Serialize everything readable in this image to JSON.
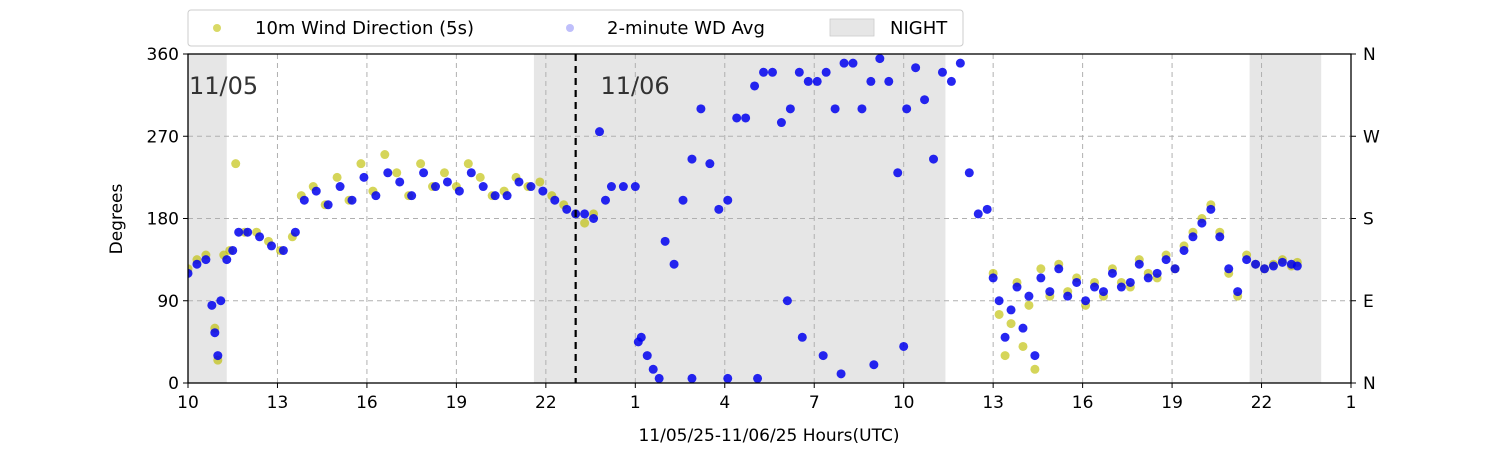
{
  "chart_data": {
    "type": "scatter",
    "xlabel": "11/05/25-11/06/25  Hours(UTC)",
    "ylabel": "Degrees",
    "x_range_hours": [
      10,
      49
    ],
    "ylim": [
      0,
      360
    ],
    "x_ticks": [
      {
        "hour": 10,
        "label": "10"
      },
      {
        "hour": 13,
        "label": "13"
      },
      {
        "hour": 16,
        "label": "16"
      },
      {
        "hour": 19,
        "label": "19"
      },
      {
        "hour": 22,
        "label": "22"
      },
      {
        "hour": 25,
        "label": "1"
      },
      {
        "hour": 28,
        "label": "4"
      },
      {
        "hour": 31,
        "label": "7"
      },
      {
        "hour": 34,
        "label": "10"
      },
      {
        "hour": 37,
        "label": "13"
      },
      {
        "hour": 40,
        "label": "16"
      },
      {
        "hour": 43,
        "label": "19"
      },
      {
        "hour": 46,
        "label": "22"
      },
      {
        "hour": 49,
        "label": "1"
      }
    ],
    "y_ticks": [
      0,
      90,
      180,
      270,
      360
    ],
    "y_ticks_right": [
      {
        "value": 0,
        "label": "N"
      },
      {
        "value": 90,
        "label": "E"
      },
      {
        "value": 180,
        "label": "S"
      },
      {
        "value": 270,
        "label": "W"
      },
      {
        "value": 360,
        "label": "N"
      }
    ],
    "grid": true,
    "legend_position": "top",
    "night_periods": [
      [
        10,
        11.3
      ],
      [
        21.6,
        35.4
      ],
      [
        45.6,
        48.0
      ]
    ],
    "date_separator_hour": 23.0,
    "date_annotations": [
      {
        "hour": 10.0,
        "label": "11/05"
      },
      {
        "hour": 23.8,
        "label": "11/06"
      }
    ],
    "series": [
      {
        "name": "10m Wind Direction (5s)",
        "color": "#bfbf00",
        "points": [
          [
            10.0,
            125
          ],
          [
            10.3,
            135
          ],
          [
            10.6,
            140
          ],
          [
            10.9,
            60
          ],
          [
            11.0,
            25
          ],
          [
            11.2,
            140
          ],
          [
            11.4,
            145
          ],
          [
            11.6,
            240
          ],
          [
            11.9,
            165
          ],
          [
            12.3,
            165
          ],
          [
            12.7,
            155
          ],
          [
            13.1,
            145
          ],
          [
            13.5,
            160
          ],
          [
            13.8,
            205
          ],
          [
            14.2,
            215
          ],
          [
            14.6,
            195
          ],
          [
            15.0,
            225
          ],
          [
            15.4,
            200
          ],
          [
            15.8,
            240
          ],
          [
            16.2,
            210
          ],
          [
            16.6,
            250
          ],
          [
            17.0,
            230
          ],
          [
            17.4,
            205
          ],
          [
            17.8,
            240
          ],
          [
            18.2,
            215
          ],
          [
            18.6,
            230
          ],
          [
            19.0,
            215
          ],
          [
            19.4,
            240
          ],
          [
            19.8,
            225
          ],
          [
            20.2,
            205
          ],
          [
            20.6,
            210
          ],
          [
            21.0,
            225
          ],
          [
            21.4,
            215
          ],
          [
            21.8,
            220
          ],
          [
            22.2,
            205
          ],
          [
            22.6,
            195
          ],
          [
            23.0,
            185
          ],
          [
            23.3,
            175
          ],
          [
            23.6,
            185
          ],
          [
            37.0,
            120
          ],
          [
            37.2,
            75
          ],
          [
            37.4,
            30
          ],
          [
            37.6,
            65
          ],
          [
            37.8,
            110
          ],
          [
            38.0,
            40
          ],
          [
            38.2,
            85
          ],
          [
            38.4,
            15
          ],
          [
            38.6,
            125
          ],
          [
            38.9,
            95
          ],
          [
            39.2,
            130
          ],
          [
            39.5,
            100
          ],
          [
            39.8,
            115
          ],
          [
            40.1,
            85
          ],
          [
            40.4,
            110
          ],
          [
            40.7,
            95
          ],
          [
            41.0,
            125
          ],
          [
            41.3,
            110
          ],
          [
            41.6,
            105
          ],
          [
            41.9,
            135
          ],
          [
            42.2,
            120
          ],
          [
            42.5,
            115
          ],
          [
            42.8,
            140
          ],
          [
            43.1,
            125
          ],
          [
            43.4,
            150
          ],
          [
            43.7,
            165
          ],
          [
            44.0,
            180
          ],
          [
            44.3,
            195
          ],
          [
            44.6,
            165
          ],
          [
            44.9,
            120
          ],
          [
            45.2,
            95
          ],
          [
            45.5,
            140
          ],
          [
            45.8,
            130
          ],
          [
            46.1,
            125
          ],
          [
            46.4,
            130
          ],
          [
            46.7,
            135
          ],
          [
            47.0,
            128
          ],
          [
            47.2,
            132
          ]
        ]
      },
      {
        "name": "2-minute WD Avg",
        "color": "#0000ee",
        "points": [
          [
            10.0,
            120
          ],
          [
            10.3,
            130
          ],
          [
            10.6,
            135
          ],
          [
            10.8,
            85
          ],
          [
            10.9,
            55
          ],
          [
            11.0,
            30
          ],
          [
            11.1,
            90
          ],
          [
            11.3,
            135
          ],
          [
            11.5,
            145
          ],
          [
            11.7,
            165
          ],
          [
            12.0,
            165
          ],
          [
            12.4,
            160
          ],
          [
            12.8,
            150
          ],
          [
            13.2,
            145
          ],
          [
            13.6,
            165
          ],
          [
            13.9,
            200
          ],
          [
            14.3,
            210
          ],
          [
            14.7,
            195
          ],
          [
            15.1,
            215
          ],
          [
            15.5,
            200
          ],
          [
            15.9,
            225
          ],
          [
            16.3,
            205
          ],
          [
            16.7,
            230
          ],
          [
            17.1,
            220
          ],
          [
            17.5,
            205
          ],
          [
            17.9,
            230
          ],
          [
            18.3,
            215
          ],
          [
            18.7,
            220
          ],
          [
            19.1,
            210
          ],
          [
            19.5,
            230
          ],
          [
            19.9,
            215
          ],
          [
            20.3,
            205
          ],
          [
            20.7,
            205
          ],
          [
            21.1,
            220
          ],
          [
            21.5,
            215
          ],
          [
            21.9,
            210
          ],
          [
            22.3,
            200
          ],
          [
            22.7,
            190
          ],
          [
            23.0,
            185
          ],
          [
            23.3,
            185
          ],
          [
            23.6,
            180
          ],
          [
            23.8,
            275
          ],
          [
            24.0,
            200
          ],
          [
            24.2,
            215
          ],
          [
            24.6,
            215
          ],
          [
            25.0,
            215
          ],
          [
            25.2,
            50
          ],
          [
            25.4,
            30
          ],
          [
            25.6,
            15
          ],
          [
            25.8,
            5
          ],
          [
            26.0,
            155
          ],
          [
            26.3,
            130
          ],
          [
            26.6,
            200
          ],
          [
            26.9,
            245
          ],
          [
            27.2,
            300
          ],
          [
            27.5,
            240
          ],
          [
            27.8,
            190
          ],
          [
            28.1,
            200
          ],
          [
            28.4,
            290
          ],
          [
            28.7,
            290
          ],
          [
            29.0,
            325
          ],
          [
            29.3,
            340
          ],
          [
            29.6,
            340
          ],
          [
            29.9,
            285
          ],
          [
            30.2,
            300
          ],
          [
            30.5,
            340
          ],
          [
            30.8,
            330
          ],
          [
            31.1,
            330
          ],
          [
            31.4,
            340
          ],
          [
            31.7,
            300
          ],
          [
            32.0,
            350
          ],
          [
            32.3,
            350
          ],
          [
            32.6,
            300
          ],
          [
            32.9,
            330
          ],
          [
            33.2,
            355
          ],
          [
            33.5,
            330
          ],
          [
            33.8,
            230
          ],
          [
            34.1,
            300
          ],
          [
            34.4,
            345
          ],
          [
            34.7,
            310
          ],
          [
            35.0,
            245
          ],
          [
            35.3,
            340
          ],
          [
            35.6,
            330
          ],
          [
            35.9,
            350
          ],
          [
            36.2,
            230
          ],
          [
            36.5,
            185
          ],
          [
            36.8,
            190
          ],
          [
            25.1,
            45
          ],
          [
            26.9,
            5
          ],
          [
            28.1,
            5
          ],
          [
            29.1,
            5
          ],
          [
            30.1,
            90
          ],
          [
            30.6,
            50
          ],
          [
            31.3,
            30
          ],
          [
            31.9,
            10
          ],
          [
            33.0,
            20
          ],
          [
            34.0,
            40
          ],
          [
            37.0,
            115
          ],
          [
            37.2,
            90
          ],
          [
            37.4,
            50
          ],
          [
            37.6,
            80
          ],
          [
            37.8,
            105
          ],
          [
            38.0,
            60
          ],
          [
            38.2,
            95
          ],
          [
            38.4,
            30
          ],
          [
            38.6,
            115
          ],
          [
            38.9,
            100
          ],
          [
            39.2,
            125
          ],
          [
            39.5,
            95
          ],
          [
            39.8,
            110
          ],
          [
            40.1,
            90
          ],
          [
            40.4,
            105
          ],
          [
            40.7,
            100
          ],
          [
            41.0,
            120
          ],
          [
            41.3,
            105
          ],
          [
            41.6,
            110
          ],
          [
            41.9,
            130
          ],
          [
            42.2,
            115
          ],
          [
            42.5,
            120
          ],
          [
            42.8,
            135
          ],
          [
            43.1,
            125
          ],
          [
            43.4,
            145
          ],
          [
            43.7,
            160
          ],
          [
            44.0,
            175
          ],
          [
            44.3,
            190
          ],
          [
            44.6,
            160
          ],
          [
            44.9,
            125
          ],
          [
            45.2,
            100
          ],
          [
            45.5,
            135
          ],
          [
            45.8,
            130
          ],
          [
            46.1,
            125
          ],
          [
            46.4,
            128
          ],
          [
            46.7,
            132
          ],
          [
            47.0,
            130
          ],
          [
            47.2,
            128
          ]
        ]
      }
    ],
    "night_legend_label": "NIGHT"
  }
}
